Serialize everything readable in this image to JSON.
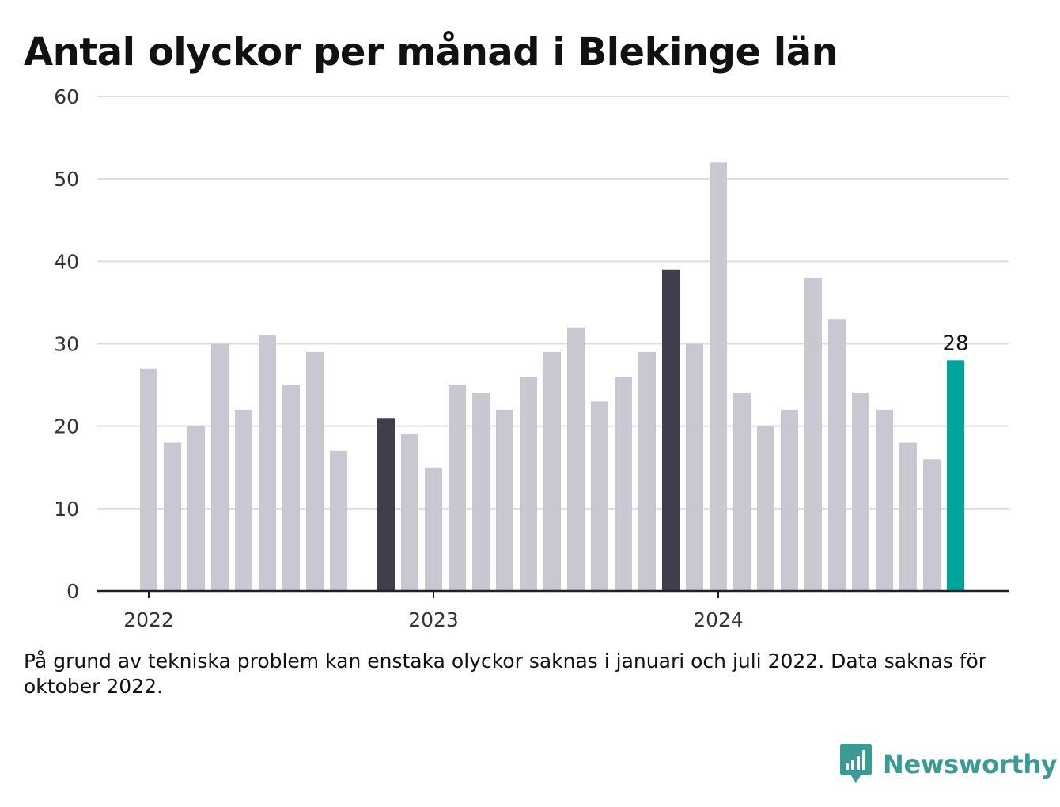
{
  "title": "Antal olyckor per månad i Blekinge län",
  "footnote": "På grund av tekniska problem kan enstaka olyckor saknas i januari och juli 2022. Data saknas för oktober 2022.",
  "brand": {
    "name": "Newsworthy",
    "icon": "newsworthy-logo-icon",
    "color": "#3a9a94"
  },
  "colors": {
    "default": "#c8c7d2",
    "highlight": "#403e4c",
    "latest": "#00a49a",
    "grid": "#dddddd",
    "axis": "#222222"
  },
  "chart_data": {
    "type": "bar",
    "title": "Antal olyckor per månad i Blekinge län",
    "ylim": [
      0,
      60
    ],
    "yticks": [
      0,
      10,
      20,
      30,
      40,
      50,
      60
    ],
    "xticks": [
      "2022",
      "2023",
      "2024"
    ],
    "grid": true,
    "categories": [
      "2022-01",
      "2022-02",
      "2022-03",
      "2022-04",
      "2022-05",
      "2022-06",
      "2022-07",
      "2022-08",
      "2022-09",
      "2022-10",
      "2022-11",
      "2022-12",
      "2023-01",
      "2023-02",
      "2023-03",
      "2023-04",
      "2023-05",
      "2023-06",
      "2023-07",
      "2023-08",
      "2023-09",
      "2023-10",
      "2023-11",
      "2023-12",
      "2024-01",
      "2024-02",
      "2024-03",
      "2024-04",
      "2024-05",
      "2024-06",
      "2024-07",
      "2024-08",
      "2024-09",
      "2024-10",
      "2024-11",
      "2024-12"
    ],
    "values": [
      27,
      18,
      20,
      30,
      22,
      31,
      25,
      29,
      17,
      null,
      21,
      19,
      15,
      25,
      24,
      22,
      26,
      29,
      32,
      23,
      26,
      29,
      39,
      30,
      52,
      24,
      20,
      22,
      38,
      33,
      24,
      22,
      18,
      16,
      28,
      null
    ],
    "highlighted": [
      "2022-11",
      "2023-11"
    ],
    "latest": "2024-11",
    "latest_label": "28"
  }
}
